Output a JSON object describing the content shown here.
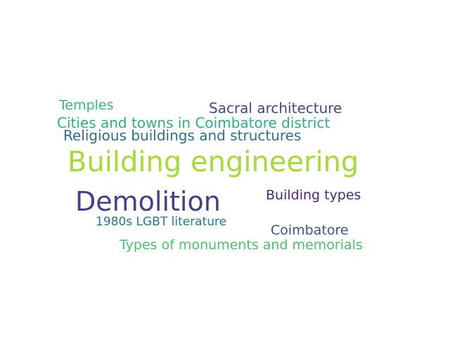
{
  "words": [
    {
      "text": "Building engineering",
      "color": "#a5db36"
    },
    {
      "text": "Demolition",
      "color": "#424086"
    },
    {
      "text": "Sacral architecture",
      "color": "#3f4a8a"
    },
    {
      "text": "Cities and towns in Coimbatore district",
      "color": "#2db27d"
    },
    {
      "text": "Religious buildings and structures",
      "color": "#2e6f8e"
    },
    {
      "text": "Temples",
      "color": "#35b779"
    },
    {
      "text": "Building types",
      "color": "#482878"
    },
    {
      "text": "1980s LGBT literature",
      "color": "#2a788e"
    },
    {
      "text": "Coimbatore",
      "color": "#3b528b"
    },
    {
      "text": "Types of monuments and memorials",
      "color": "#4ac16d"
    }
  ]
}
